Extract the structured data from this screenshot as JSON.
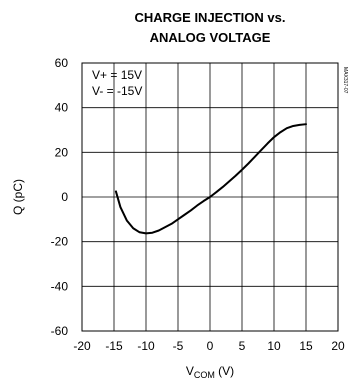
{
  "chart_data": {
    "type": "line",
    "title_line1": "CHARGE INJECTION vs.",
    "title_line2": "ANALOG VOLTAGE",
    "xlabel_main": "V",
    "xlabel_sub": "COM",
    "xlabel_unit": " (V)",
    "ylabel": "Q (pC)",
    "xlim": [
      -20,
      20
    ],
    "ylim": [
      -60,
      60
    ],
    "x_ticks": [
      -20,
      -15,
      -10,
      -5,
      0,
      5,
      10,
      15,
      20
    ],
    "y_ticks": [
      -60,
      -40,
      -20,
      0,
      20,
      40,
      60
    ],
    "grid": true,
    "annotations": [
      "V+ = 15V",
      "V- = -15V"
    ],
    "side_label": "MAX317-07",
    "series": [
      {
        "color": "#000000",
        "x": [
          -14.7,
          -14.0,
          -13.0,
          -12.0,
          -11.0,
          -10.0,
          -9.0,
          -8.0,
          -7.0,
          -6.0,
          -5.0,
          -4.0,
          -3.0,
          -2.0,
          -1.0,
          0.0,
          1.0,
          2.0,
          3.0,
          4.0,
          5.0,
          6.0,
          7.0,
          8.0,
          9.0,
          10.0,
          11.0,
          12.0,
          13.0,
          14.0,
          15.0
        ],
        "y": [
          2.5,
          -4.5,
          -10.5,
          -14.0,
          -15.8,
          -16.3,
          -16.0,
          -15.0,
          -13.5,
          -12.0,
          -10.0,
          -8.0,
          -6.0,
          -3.8,
          -1.8,
          0.0,
          2.2,
          4.5,
          7.0,
          9.5,
          12.2,
          15.0,
          18.0,
          21.0,
          24.0,
          26.8,
          29.0,
          30.8,
          31.8,
          32.3,
          32.6
        ]
      }
    ]
  }
}
